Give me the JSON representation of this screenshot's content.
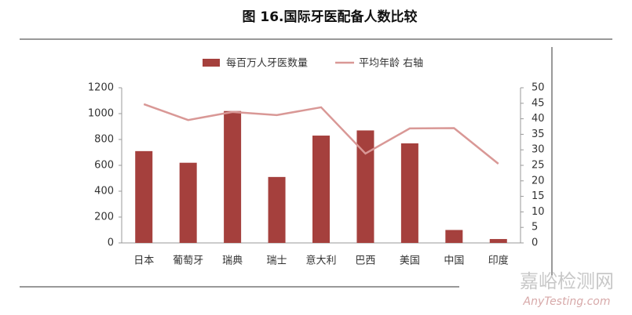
{
  "chart_data": {
    "type": "bar-line",
    "title": "图 16.国际牙医配备人数比较",
    "categories": [
      "日本",
      "葡萄牙",
      "瑞典",
      "瑞士",
      "意大利",
      "巴西",
      "美国",
      "中国",
      "印度"
    ],
    "series": [
      {
        "name": "每百万人牙医数量",
        "type": "bar",
        "color": "#a5403d",
        "values": [
          710,
          620,
          1020,
          510,
          830,
          870,
          770,
          100,
          30
        ]
      },
      {
        "name": "平均年龄 右轴",
        "type": "line",
        "axis": "y2",
        "color": "#d99896",
        "values": [
          44.7,
          39.6,
          42.2,
          41.2,
          43.7,
          28.8,
          36.9,
          37,
          25.5
        ]
      }
    ],
    "ylim": [
      0,
      1200
    ],
    "yticks": [
      0,
      200,
      400,
      600,
      800,
      1000,
      1200
    ],
    "y2lim": [
      0,
      50
    ],
    "y2ticks": [
      0,
      5,
      10,
      15,
      20,
      25,
      30,
      35,
      40,
      45,
      50
    ],
    "legend": "top",
    "watermark": {
      "main": "嘉峪检测网",
      "sub": "AnyTesting.com"
    }
  }
}
